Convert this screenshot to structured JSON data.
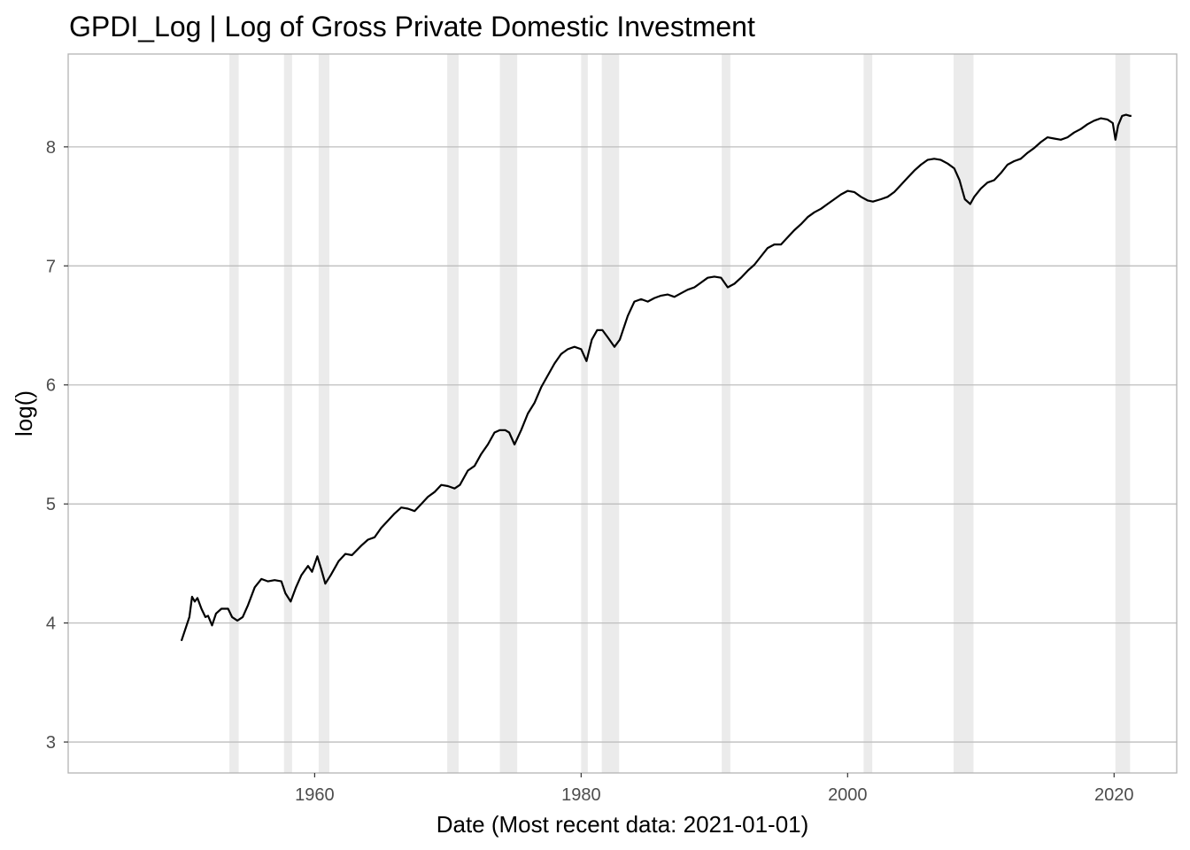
{
  "chart_data": {
    "type": "line",
    "title": "GPDI_Log | Log of Gross Private Domestic Investment",
    "xlabel": "Date (Most recent data: 2021-01-01)",
    "ylabel": "log()",
    "x_ticks": [
      "1960",
      "1980",
      "2000",
      "2020"
    ],
    "y_ticks": [
      "3",
      "4",
      "5",
      "6",
      "7",
      "8"
    ],
    "xlim": [
      1941.5,
      2024.7
    ],
    "ylim": [
      2.74,
      8.78
    ],
    "grid": "horizontal major lines only",
    "colors": {
      "line": "#000000",
      "recession": "#ebebeb",
      "grid": "#bebebe",
      "border": "#b3b3b3"
    },
    "recession_shading": [
      [
        1953.6,
        1954.3
      ],
      [
        1957.7,
        1958.3
      ],
      [
        1960.3,
        1961.1
      ],
      [
        1969.95,
        1970.8
      ],
      [
        1973.9,
        1975.2
      ],
      [
        1980.0,
        1980.5
      ],
      [
        1981.55,
        1982.85
      ],
      [
        1990.55,
        1991.2
      ],
      [
        2001.2,
        2001.85
      ],
      [
        2007.95,
        2009.45
      ],
      [
        2020.1,
        2021.2
      ]
    ],
    "series": [
      {
        "x": [
          1950.0,
          1950.6,
          1950.8,
          1951.0,
          1951.2,
          1951.5,
          1951.8,
          1952.0,
          1952.3,
          1952.6,
          1953.0,
          1953.5,
          1953.8,
          1954.2,
          1954.6,
          1955.0,
          1955.5,
          1956.0,
          1956.5,
          1957.0,
          1957.5,
          1957.8,
          1958.2,
          1958.6,
          1959.0,
          1959.5,
          1959.8,
          1960.2,
          1960.5,
          1960.8,
          1961.2,
          1961.8,
          1962.3,
          1962.8,
          1963.5,
          1964.0,
          1964.5,
          1965.0,
          1965.5,
          1966.0,
          1966.5,
          1967.0,
          1967.5,
          1968.0,
          1968.5,
          1969.0,
          1969.5,
          1970.0,
          1970.5,
          1970.9,
          1971.5,
          1972.0,
          1972.5,
          1973.0,
          1973.5,
          1973.9,
          1974.3,
          1974.6,
          1975.0,
          1975.5,
          1976.0,
          1976.5,
          1977.0,
          1977.5,
          1978.0,
          1978.5,
          1979.0,
          1979.5,
          1980.0,
          1980.4,
          1980.8,
          1981.2,
          1981.6,
          1982.0,
          1982.5,
          1982.9,
          1983.5,
          1984.0,
          1984.5,
          1985.0,
          1985.5,
          1986.0,
          1986.5,
          1987.0,
          1987.5,
          1988.0,
          1988.5,
          1989.0,
          1989.5,
          1990.0,
          1990.5,
          1991.0,
          1991.5,
          1992.0,
          1992.5,
          1993.0,
          1993.5,
          1994.0,
          1994.5,
          1995.0,
          1995.5,
          1996.0,
          1996.5,
          1997.0,
          1997.5,
          1998.0,
          1998.5,
          1999.0,
          1999.5,
          2000.0,
          2000.5,
          2001.0,
          2001.5,
          2001.9,
          2002.5,
          2003.0,
          2003.5,
          2004.0,
          2004.5,
          2005.0,
          2005.5,
          2006.0,
          2006.5,
          2007.0,
          2007.5,
          2008.0,
          2008.4,
          2008.8,
          2009.2,
          2009.5,
          2010.0,
          2010.5,
          2011.0,
          2011.5,
          2012.0,
          2012.5,
          2013.0,
          2013.5,
          2014.0,
          2014.5,
          2015.0,
          2015.5,
          2016.0,
          2016.5,
          2017.0,
          2017.5,
          2018.0,
          2018.5,
          2019.0,
          2019.5,
          2019.9,
          2020.1,
          2020.3,
          2020.6,
          2020.9,
          2021.2,
          2021.3
        ],
        "y": [
          3.85,
          4.05,
          4.22,
          4.18,
          4.21,
          4.12,
          4.05,
          4.06,
          3.98,
          4.08,
          4.12,
          4.12,
          4.05,
          4.02,
          4.05,
          4.15,
          4.3,
          4.37,
          4.35,
          4.36,
          4.35,
          4.25,
          4.18,
          4.3,
          4.4,
          4.48,
          4.43,
          4.56,
          4.45,
          4.33,
          4.4,
          4.52,
          4.58,
          4.57,
          4.65,
          4.7,
          4.72,
          4.8,
          4.86,
          4.92,
          4.97,
          4.96,
          4.94,
          5.0,
          5.06,
          5.1,
          5.16,
          5.15,
          5.13,
          5.16,
          5.28,
          5.32,
          5.42,
          5.5,
          5.6,
          5.62,
          5.62,
          5.6,
          5.5,
          5.62,
          5.76,
          5.85,
          5.98,
          6.08,
          6.18,
          6.26,
          6.3,
          6.32,
          6.3,
          6.2,
          6.38,
          6.46,
          6.46,
          6.4,
          6.32,
          6.38,
          6.58,
          6.7,
          6.72,
          6.7,
          6.73,
          6.75,
          6.76,
          6.74,
          6.77,
          6.8,
          6.82,
          6.86,
          6.9,
          6.91,
          6.9,
          6.82,
          6.85,
          6.9,
          6.96,
          7.01,
          7.08,
          7.15,
          7.18,
          7.18,
          7.24,
          7.3,
          7.35,
          7.41,
          7.45,
          7.48,
          7.52,
          7.56,
          7.6,
          7.63,
          7.62,
          7.58,
          7.55,
          7.54,
          7.56,
          7.58,
          7.62,
          7.68,
          7.74,
          7.8,
          7.85,
          7.89,
          7.9,
          7.89,
          7.86,
          7.82,
          7.72,
          7.56,
          7.52,
          7.58,
          7.65,
          7.7,
          7.72,
          7.78,
          7.85,
          7.88,
          7.9,
          7.95,
          7.99,
          8.04,
          8.08,
          8.07,
          8.06,
          8.08,
          8.12,
          8.15,
          8.19,
          8.22,
          8.24,
          8.23,
          8.2,
          8.06,
          8.18,
          8.26,
          8.27,
          8.26,
          8.26
        ]
      }
    ]
  }
}
